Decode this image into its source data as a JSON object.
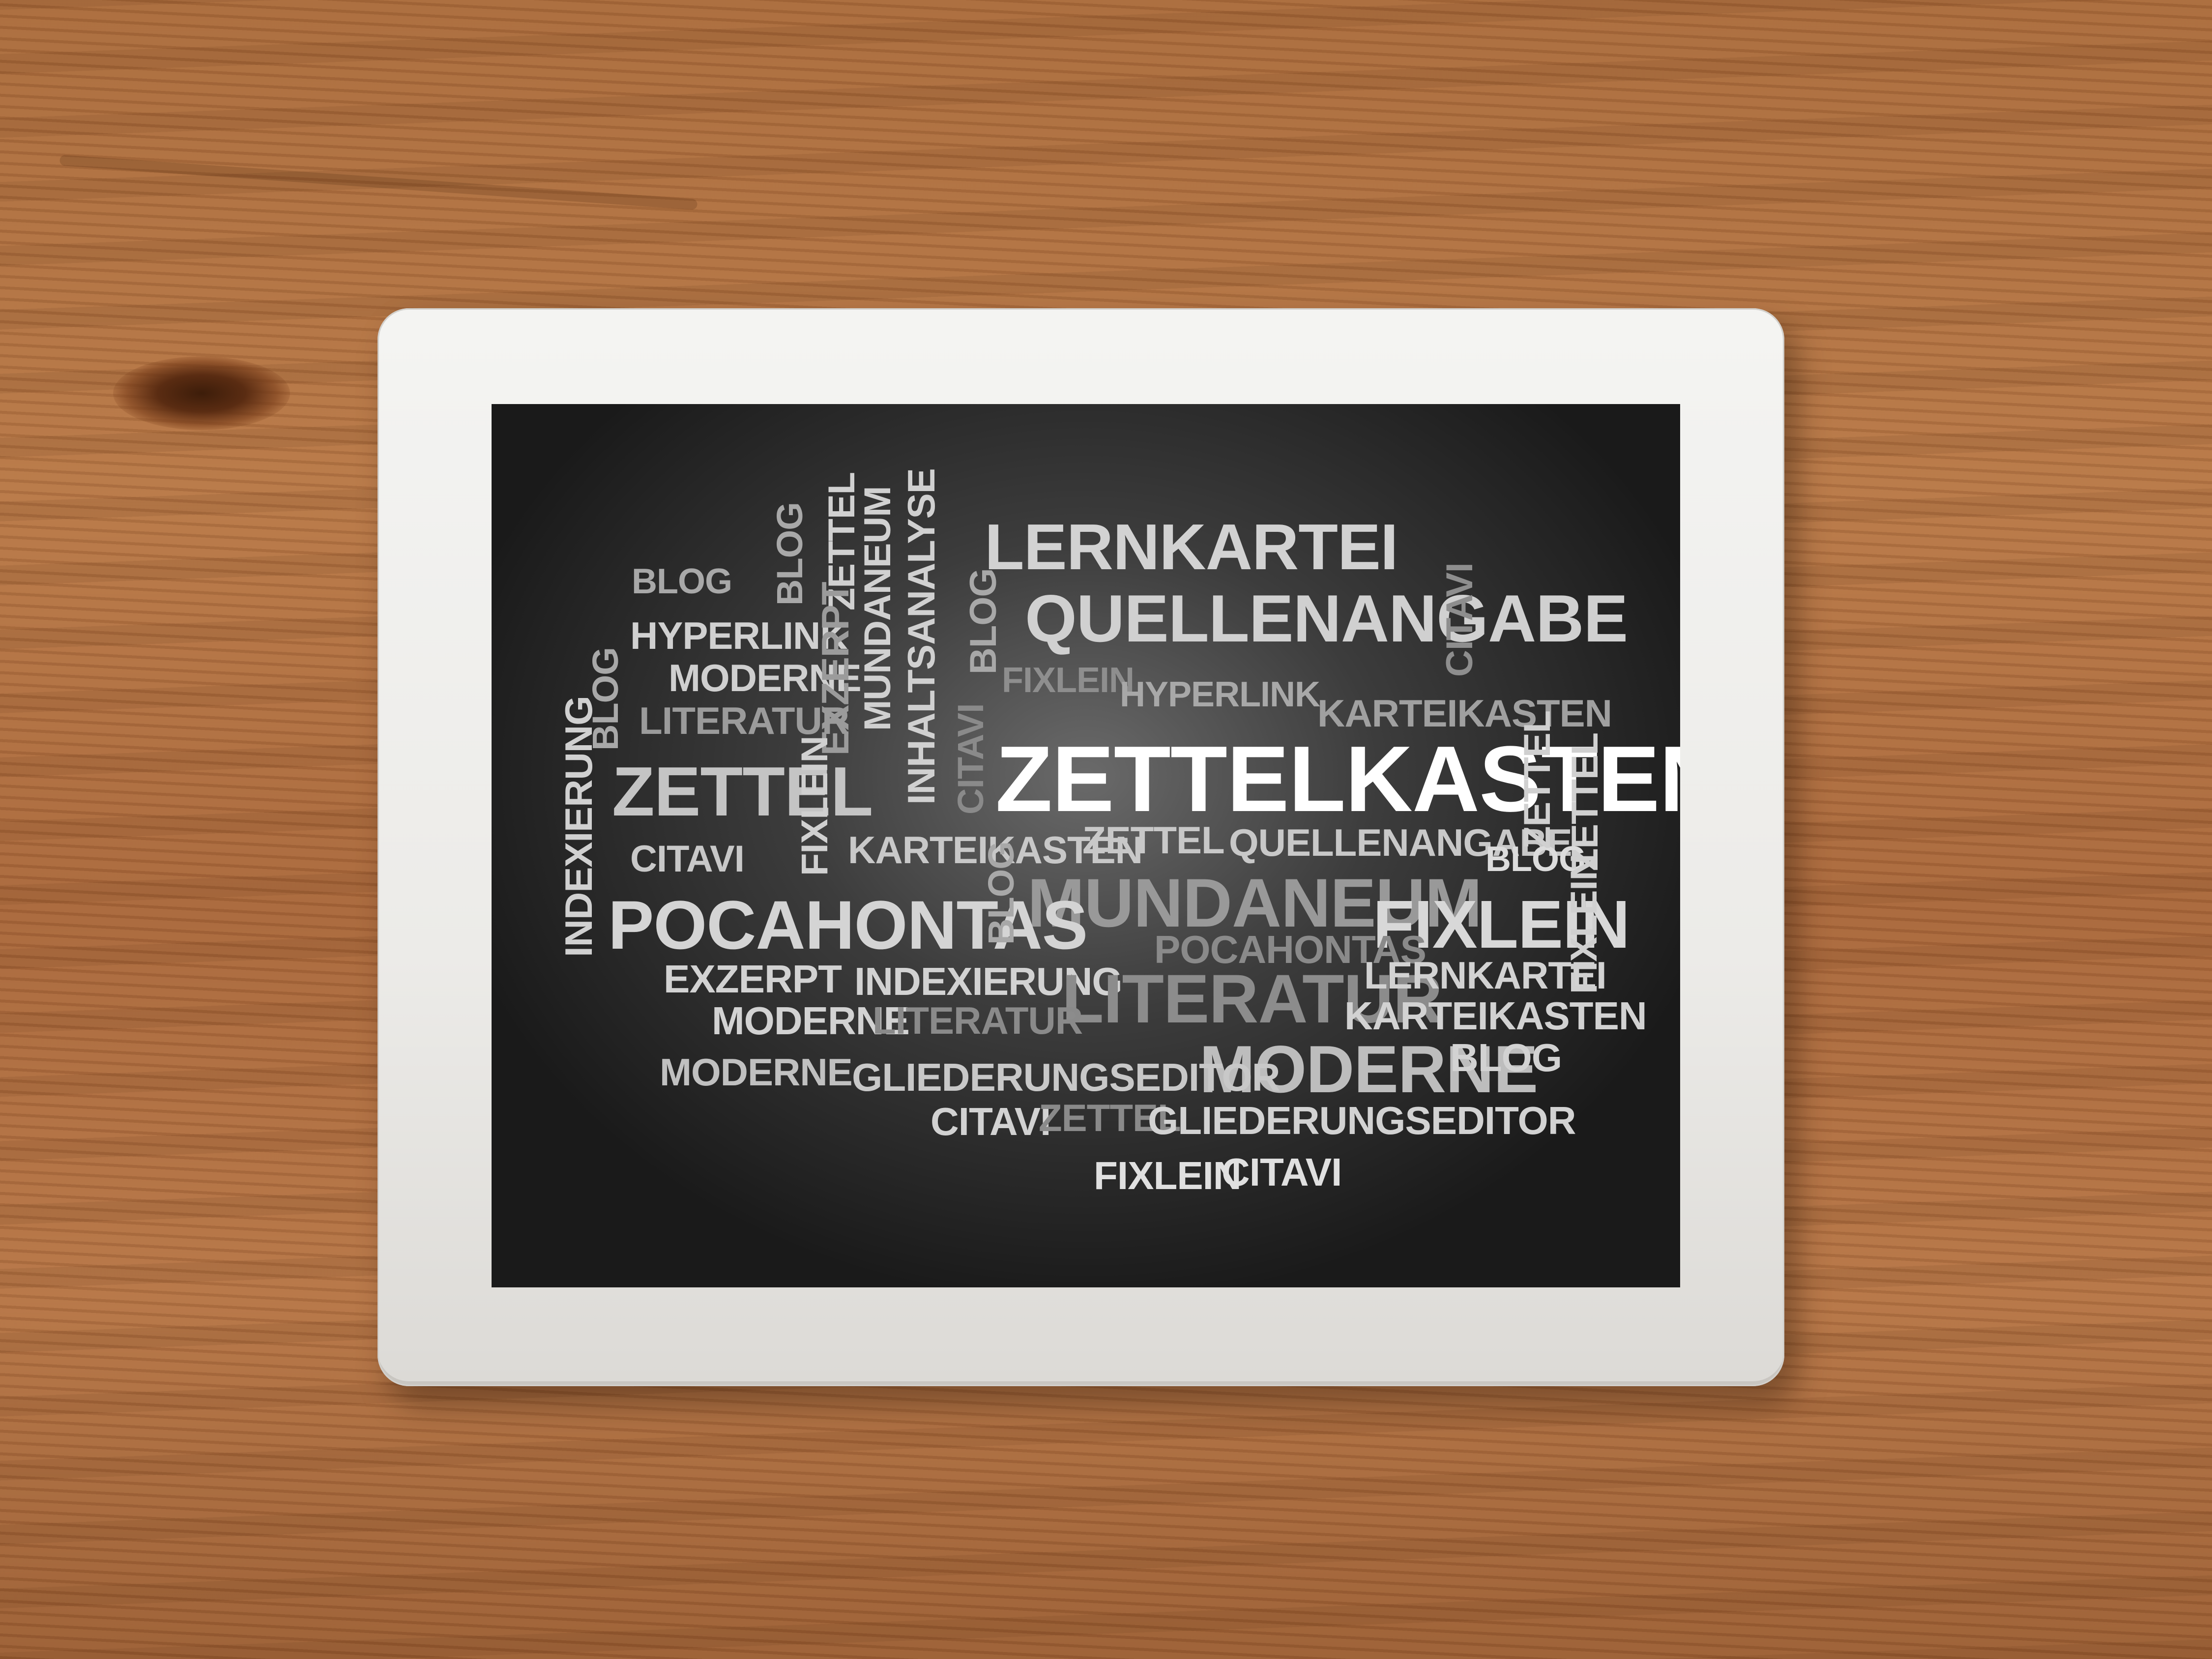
{
  "word_cloud": {
    "words": [
      "LERNKARTEI",
      "QUELLENANGABE",
      "CITAVI",
      "BLOG",
      "BLOG",
      "ZETTEL",
      "MUNDANEUM",
      "INHALTSANALYSE",
      "EXZERPT",
      "HYPERLINK",
      "MODERNE",
      "LITERATUR",
      "BLOG",
      "FIXLEIN",
      "HYPERLINK",
      "KARTEIKASTEN",
      "BLOG",
      "CITAVI",
      "ZETTELKASTEN",
      "INDEXIERUNG",
      "ZETTEL",
      "FIXLEIN",
      "CITAVI",
      "KARTEIKASTEN",
      "ZETTEL",
      "QUELLENANGABE",
      "BLOG",
      "ZETTEL",
      "ZETTEL",
      "FIXLEIN",
      "BLOG",
      "MUNDANEUM",
      "POCAHONTAS",
      "FIXLEIN",
      "POCAHONTAS",
      "EXZERPT",
      "INDEXIERUNG",
      "LITERATUR",
      "LERNKARTEI",
      "MODERNE",
      "LITERATUR",
      "KARTEIKASTEN",
      "MODERNE",
      "GLIEDERUNGSEDITOR",
      "MODERNE",
      "BLOG",
      "CITAVI",
      "ZETTEL",
      "GLIEDERUNGSEDITOR",
      "FIXLEIN",
      "CITAVI"
    ]
  }
}
